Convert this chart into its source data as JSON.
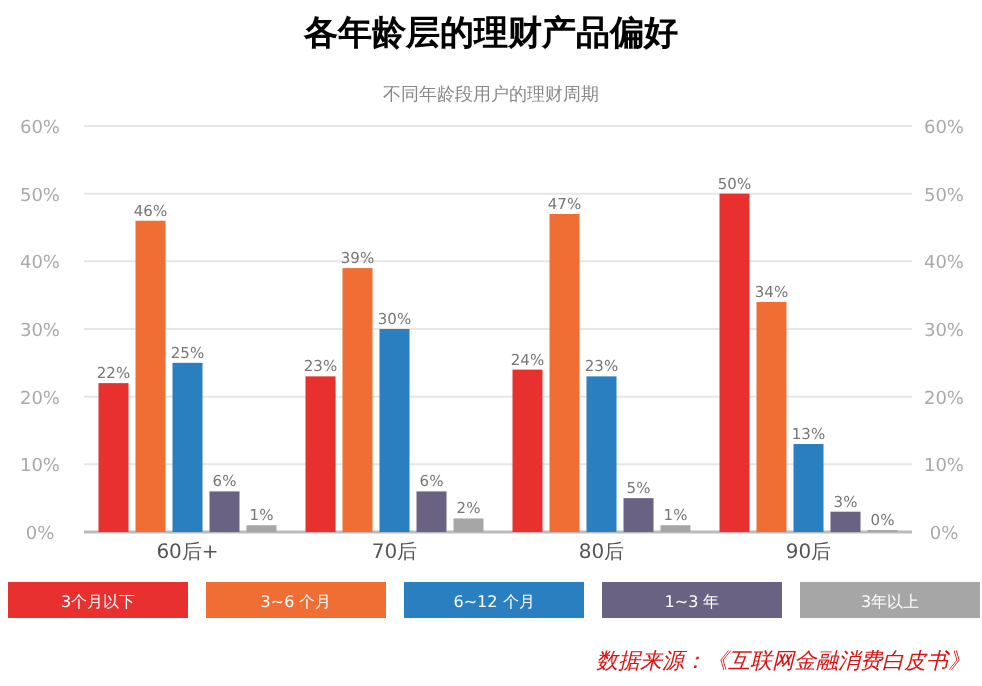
{
  "chart_data": {
    "type": "bar",
    "title": "各年龄层的理财产品偏好",
    "subtitle": "不同年龄段用户的理财周期",
    "categories": [
      "60后+",
      "70后",
      "80后",
      "90后"
    ],
    "series": [
      {
        "name": "3个月以下",
        "color": "#e8312f",
        "values": [
          22,
          23,
          24,
          50
        ],
        "value_labels": [
          "22%",
          "23%",
          "24%",
          "50%"
        ]
      },
      {
        "name": "3~6 个月",
        "color": "#f06d33",
        "values": [
          46,
          39,
          47,
          34
        ],
        "value_labels": [
          "46%",
          "39%",
          "47%",
          "34%"
        ]
      },
      {
        "name": "6~12 个月",
        "color": "#2a7fc1",
        "values": [
          25,
          30,
          23,
          13
        ],
        "value_labels": [
          "25%",
          "30%",
          "23%",
          "13%"
        ]
      },
      {
        "name": "1~3 年",
        "color": "#6a6283",
        "values": [
          6,
          6,
          5,
          3
        ],
        "value_labels": [
          "6%",
          "6%",
          "5%",
          "3%"
        ]
      },
      {
        "name": "3年以上",
        "color": "#a6a6a6",
        "values": [
          1,
          2,
          1,
          0
        ],
        "value_labels": [
          "1%",
          "2%",
          "1%",
          "0%"
        ]
      }
    ],
    "ylim": [
      0,
      60
    ],
    "yticks": [
      {
        "value": 0,
        "label": "0%"
      },
      {
        "value": 10,
        "label": "10%"
      },
      {
        "value": 20,
        "label": "20%"
      },
      {
        "value": 30,
        "label": "30%"
      },
      {
        "value": 40,
        "label": "40%"
      },
      {
        "value": 50,
        "label": "50%"
      },
      {
        "value": 60,
        "label": "60%"
      }
    ],
    "y2lim": [
      0,
      60
    ],
    "y2ticks": [
      {
        "value": 0,
        "label": "0%"
      },
      {
        "value": 10,
        "label": "10%"
      },
      {
        "value": 20,
        "label": "20%"
      },
      {
        "value": 30,
        "label": "30%"
      },
      {
        "value": 40,
        "label": "40%"
      },
      {
        "value": 50,
        "label": "50%"
      },
      {
        "value": 60,
        "label": "60%"
      }
    ],
    "grid": "y",
    "legend": "bottom",
    "annotations": [
      "数据来源：《互联网金融消费白皮书》"
    ]
  }
}
